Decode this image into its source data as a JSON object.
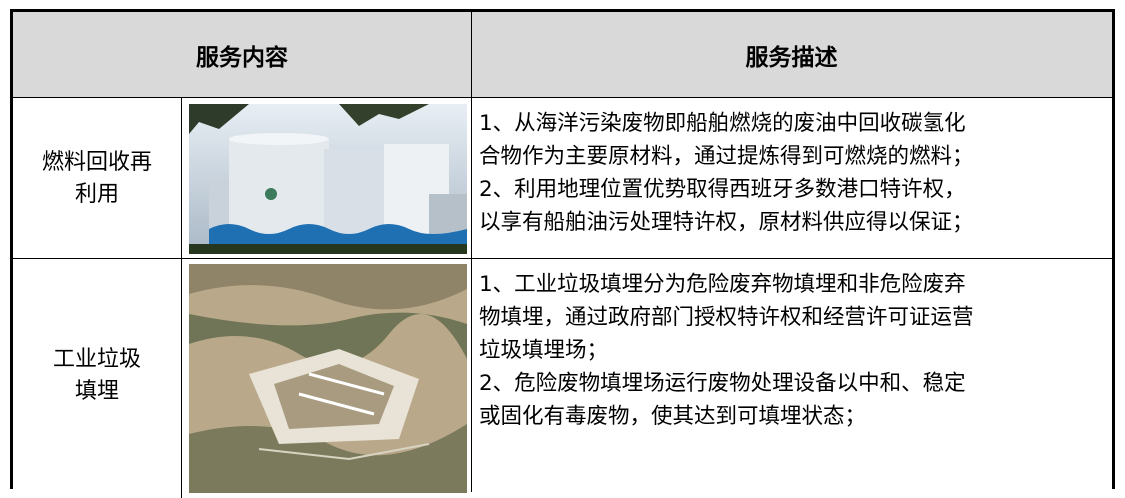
{
  "table": {
    "header": [
      "服务内容",
      "服务描述"
    ],
    "rows": [
      {
        "service": [
          "燃料回收再",
          "利用"
        ],
        "description": [
          "1、从海洋污染废物即船舶燃烧的废油中回收碳氢化",
          "合物作为主要原材料，通过提炼得到可燃烧的燃料；",
          "2、利用地理位置优势取得西班牙多数港口特许权，",
          "以享有船舶油污处理特许权，原材料供应得以保证；"
        ]
      },
      {
        "service": [
          "工业垃圾",
          "填埋"
        ],
        "description": [
          "1、工业垃圾填埋分为危险废弃物填埋和非危险废弃",
          "物填埋，通过政府部门授权特许权和经营许可证运营",
          "垃圾填埋场；",
          "2、危险废物填埋场运行废物处理设备以中和、稳定",
          "或固化有毒废物，使其达到可填埋状态；"
        ]
      }
    ]
  }
}
